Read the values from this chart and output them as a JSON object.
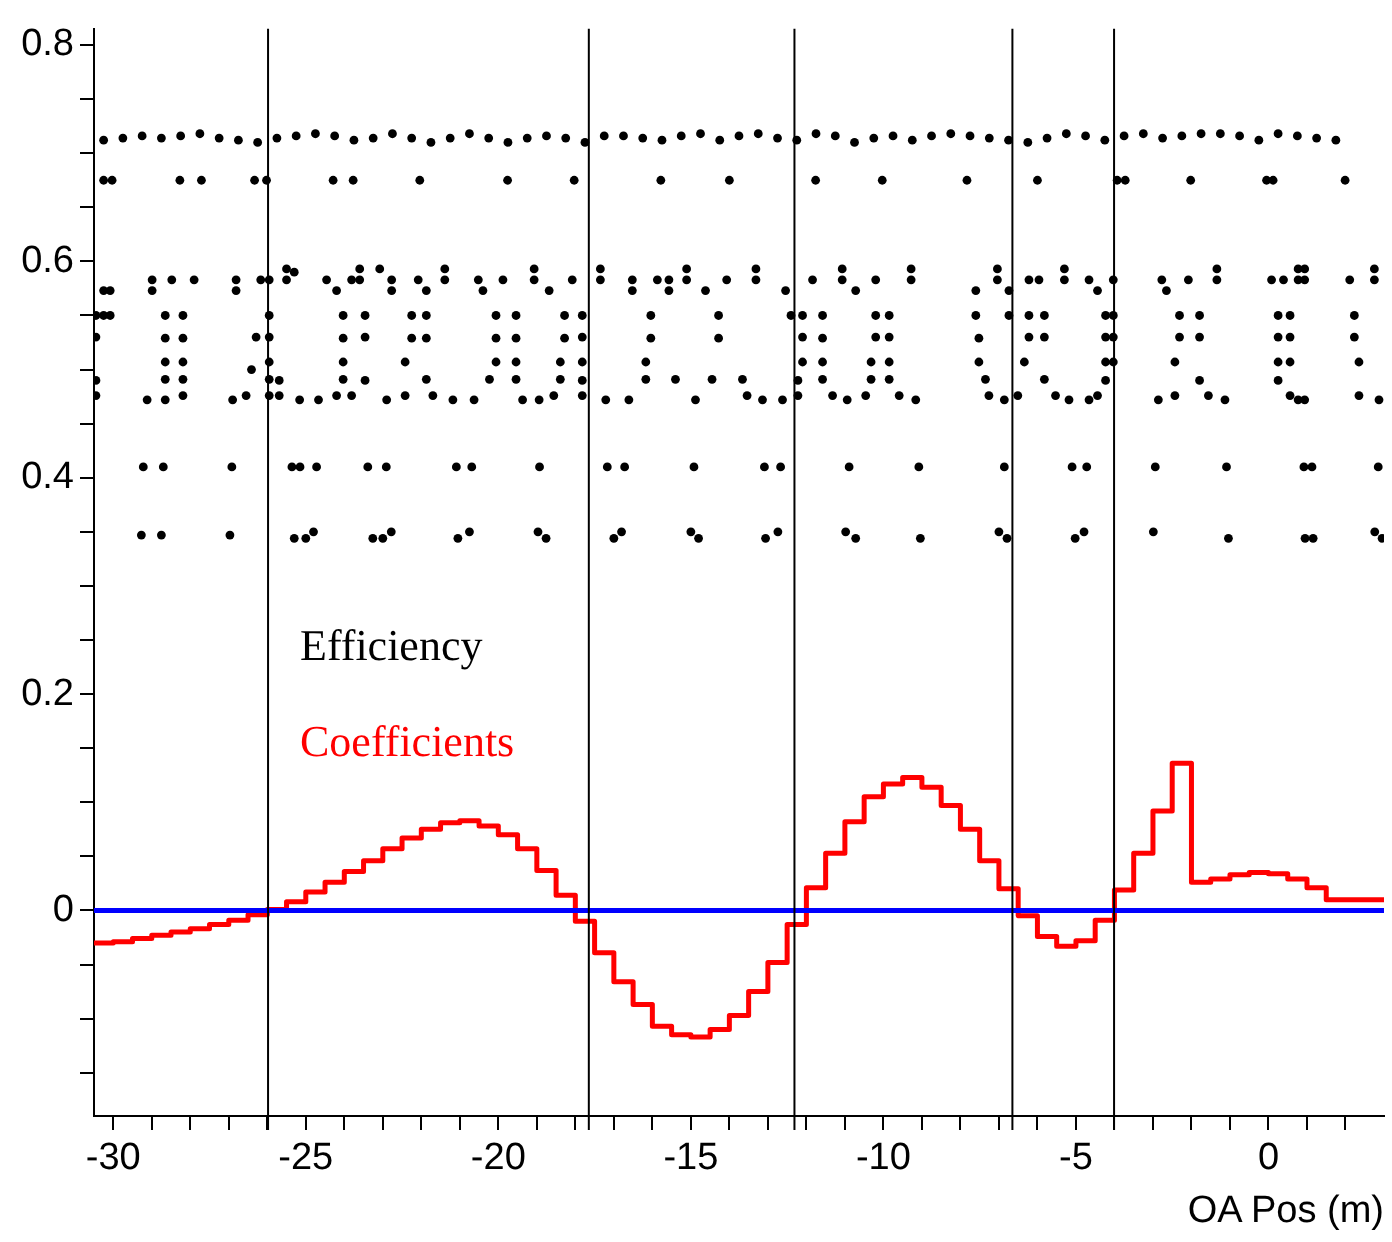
{
  "chart_data": {
    "type": "scatter",
    "xlabel": "OA Pos (m)",
    "xlim": [
      -30.5,
      3
    ],
    "ylim": [
      -0.19,
      0.815
    ],
    "xticks": [
      {
        "value": -30,
        "label": "-30"
      },
      {
        "value": -29,
        "label": null
      },
      {
        "value": -28,
        "label": null
      },
      {
        "value": -27,
        "label": null
      },
      {
        "value": -26,
        "label": null
      },
      {
        "value": -25,
        "label": "-25"
      },
      {
        "value": -24,
        "label": null
      },
      {
        "value": -23,
        "label": null
      },
      {
        "value": -22,
        "label": null
      },
      {
        "value": -21,
        "label": null
      },
      {
        "value": -20,
        "label": "-20"
      },
      {
        "value": -19,
        "label": null
      },
      {
        "value": -18,
        "label": null
      },
      {
        "value": -17,
        "label": null
      },
      {
        "value": -16,
        "label": null
      },
      {
        "value": -15,
        "label": "-15"
      },
      {
        "value": -14,
        "label": null
      },
      {
        "value": -13,
        "label": null
      },
      {
        "value": -12,
        "label": null
      },
      {
        "value": -11,
        "label": null
      },
      {
        "value": -10,
        "label": "-10"
      },
      {
        "value": -9,
        "label": null
      },
      {
        "value": -8,
        "label": null
      },
      {
        "value": -7,
        "label": null
      },
      {
        "value": -6,
        "label": null
      },
      {
        "value": -5,
        "label": "-5"
      },
      {
        "value": -4,
        "label": null
      },
      {
        "value": -3,
        "label": null
      },
      {
        "value": -2,
        "label": null
      },
      {
        "value": -1,
        "label": null
      },
      0,
      {
        "value": 1,
        "label": null
      },
      {
        "value": 2,
        "label": null
      }
    ],
    "yticks": [
      {
        "value": -0.15,
        "label": null
      },
      {
        "value": -0.1,
        "label": null
      },
      {
        "value": -0.05,
        "label": null
      },
      0,
      {
        "value": 0.05,
        "label": null
      },
      {
        "value": 0.1,
        "label": null
      },
      {
        "value": 0.15,
        "label": null
      },
      0.2,
      {
        "value": 0.25,
        "label": null
      },
      {
        "value": 0.3,
        "label": null
      },
      {
        "value": 0.35,
        "label": null
      },
      0.4,
      {
        "value": 0.45,
        "label": null
      },
      {
        "value": 0.5,
        "label": null
      },
      {
        "value": 0.55,
        "label": null
      },
      0.6,
      {
        "value": 0.65,
        "label": null
      },
      {
        "value": 0.7,
        "label": null
      },
      {
        "value": 0.75,
        "label": null
      },
      0.8
    ],
    "marker": "circle",
    "legend": "left",
    "ref_lines": [
      {
        "axis": "y",
        "value": 0,
        "color": "#0000ff"
      },
      {
        "axis": "x",
        "value": -25.98,
        "color": "#000000"
      },
      {
        "axis": "x",
        "value": -17.65,
        "color": "#000000"
      },
      {
        "axis": "x",
        "value": -12.31,
        "color": "#000000"
      },
      {
        "axis": "x",
        "value": -6.65,
        "color": "#000000"
      },
      {
        "axis": "x",
        "value": -4.01,
        "color": "#000000"
      }
    ],
    "series": [
      {
        "name": "Efficiency",
        "type": "scatter",
        "color": "#000000",
        "x": [
          -30.25,
          -29.75,
          -29.25,
          -28.75,
          -28.25,
          -27.75,
          -27.25,
          -26.75,
          -26.25,
          -25.75,
          -25.25,
          -24.75,
          -24.25,
          -23.75,
          -23.25,
          -22.75,
          -22.25,
          -21.75,
          -21.25,
          -20.75,
          -20.25,
          -19.75,
          -19.25,
          -18.75,
          -18.25,
          -17.75,
          -17.25,
          -16.75,
          -16.25,
          -15.75,
          -15.25,
          -14.75,
          -14.25,
          -13.75,
          -13.25,
          -12.75,
          -12.25,
          -11.75,
          -11.25,
          -10.75,
          -10.25,
          -9.75,
          -9.25,
          -8.75,
          -8.25,
          -7.75,
          -7.25,
          -6.75,
          -6.25,
          -5.75,
          -5.25,
          -4.75,
          -4.25,
          -3.75,
          -3.25,
          -2.75,
          -2.25,
          -1.75,
          -1.25,
          -0.75,
          -0.25,
          0.25,
          0.75,
          1.25,
          1.75,
          -30.25,
          -30.03,
          -28.27,
          -27.71,
          -26.33,
          -26.02,
          -24.29,
          -23.77,
          -22.04,
          -19.76,
          -18.03,
          -15.78,
          -14.0,
          -11.76,
          -10.03,
          -7.83,
          -6.0,
          -3.93,
          -3.72,
          -2.02,
          -0.05,
          0.12,
          1.99,
          -29.22,
          -28.7,
          -26.92,
          -25.36,
          -25.15,
          -24.72,
          -23.39,
          -22.91,
          -21.09,
          -20.69,
          -18.93,
          -17.17,
          -16.72,
          -14.92,
          -13.09,
          -12.67,
          -10.89,
          -9.08,
          -6.86,
          -5.1,
          -4.72,
          -2.94,
          -1.09,
          0.92,
          1.13,
          2.85,
          -29.27,
          -28.75,
          -26.97,
          -25.3,
          -25.0,
          -24.8,
          -23.26,
          -23.0,
          -22.78,
          -21.05,
          -20.75,
          -18.97,
          -18.76,
          -17.0,
          -16.8,
          -15.0,
          -14.8,
          -13.06,
          -12.74,
          -10.98,
          -10.72,
          -9.04,
          -7.0,
          -6.79,
          -5.02,
          -4.79,
          -2.99,
          -1.04,
          0.95,
          1.16,
          2.76,
          2.95,
          -30.45,
          -30.45,
          -30.45,
          -30.45,
          -30.25,
          -30.25,
          -30.08,
          -30.08,
          -29.12,
          -28.99,
          -28.99,
          -28.65,
          -28.65,
          -28.65,
          -28.65,
          -28.65,
          -28.48,
          -28.19,
          -28.19,
          -28.19,
          -28.19,
          -28.19,
          -27.9,
          -26.9,
          -26.81,
          -26.81,
          -26.55,
          -26.41,
          -26.29,
          -26.17,
          -25.95,
          -25.95,
          -25.95,
          -25.95,
          -25.95,
          -25.95,
          -25.69,
          -25.69,
          -25.5,
          -25.5,
          -25.3,
          -25.16,
          -24.67,
          -24.46,
          -24.2,
          -24.2,
          -24.03,
          -24.03,
          -24.03,
          -24.03,
          -23.81,
          -23.81,
          -23.6,
          -23.6,
          -23.46,
          -23.46,
          -23.46,
          -23.08,
          -22.9,
          -22.77,
          -22.77,
          -22.42,
          -22.42,
          -22.25,
          -22.25,
          -22.08,
          -21.87,
          -21.87,
          -21.87,
          -21.87,
          -21.7,
          -21.39,
          -21.39,
          -21.18,
          -20.63,
          -20.52,
          -20.4,
          -20.23,
          -20.06,
          -20.06,
          -20.06,
          -19.88,
          -19.54,
          -19.54,
          -19.54,
          -19.54,
          -19.37,
          -19.07,
          -19.07,
          -18.94,
          -18.68,
          -18.56,
          -18.39,
          -18.39,
          -18.28,
          -18.28,
          -18.08,
          -17.82,
          -17.82,
          -17.82,
          -17.82,
          -17.82,
          -17.35,
          -17.35,
          -17.21,
          -16.61,
          -16.52,
          -16.52,
          -16.17,
          -16.17,
          -16.04,
          -16.04,
          -15.87,
          -15.57,
          -15.57,
          -15.4,
          -15.11,
          -15.11,
          -14.88,
          -14.62,
          -14.45,
          -14.28,
          -14.28,
          -14.07,
          -13.66,
          -13.54,
          -13.31,
          -13.31,
          -13.14,
          -12.62,
          -12.54,
          -12.4,
          -12.22,
          -12.22,
          -12.1,
          -12.1,
          -12.1,
          -11.84,
          -11.58,
          -11.58,
          -11.58,
          -11.58,
          -11.32,
          -11.07,
          -11.07,
          -10.94,
          -10.72,
          -10.46,
          -10.32,
          -10.32,
          -10.2,
          -10.2,
          -10.2,
          -9.85,
          -9.85,
          -9.85,
          -9.85,
          -9.59,
          -9.28,
          -9.28,
          -9.16,
          -7.6,
          -7.6,
          -7.52,
          -7.52,
          -7.35,
          -7.26,
          -7.04,
          -7.04,
          -6.86,
          -6.74,
          -6.74,
          -6.51,
          -6.34,
          -6.22,
          -6.22,
          -6.22,
          -5.96,
          -5.82,
          -5.82,
          -5.82,
          -5.53,
          -5.3,
          -5.3,
          -5.18,
          -4.66,
          -4.66,
          -4.44,
          -4.44,
          -4.23,
          -4.23,
          -4.23,
          -4.23,
          -4.03,
          -4.03,
          -4.03,
          -4.03,
          -2.86,
          -2.77,
          -2.65,
          -2.43,
          -2.43,
          -2.31,
          -2.31,
          -2.08,
          -1.79,
          -1.79,
          -1.79,
          -1.56,
          -1.34,
          -1.34,
          -1.13,
          0.08,
          0.25,
          0.25,
          0.25,
          0.25,
          0.39,
          0.56,
          0.56,
          0.56,
          0.56,
          0.77,
          0.77,
          0.77,
          0.94,
          0.94,
          0.94,
          2.11,
          2.23,
          2.23,
          2.35,
          2.35,
          2.75,
          2.75,
          2.87
        ],
        "values": [
          0.712,
          0.714,
          0.716,
          0.714,
          0.716,
          0.718,
          0.714,
          0.712,
          0.71,
          0.714,
          0.716,
          0.718,
          0.716,
          0.712,
          0.714,
          0.718,
          0.714,
          0.71,
          0.714,
          0.718,
          0.714,
          0.71,
          0.714,
          0.716,
          0.714,
          0.71,
          0.716,
          0.716,
          0.714,
          0.712,
          0.716,
          0.718,
          0.712,
          0.716,
          0.718,
          0.714,
          0.712,
          0.718,
          0.716,
          0.71,
          0.714,
          0.716,
          0.712,
          0.716,
          0.718,
          0.716,
          0.714,
          0.712,
          0.71,
          0.714,
          0.718,
          0.716,
          0.712,
          0.716,
          0.718,
          0.714,
          0.716,
          0.718,
          0.718,
          0.716,
          0.712,
          0.718,
          0.716,
          0.714,
          0.712,
          0.675,
          0.675,
          0.675,
          0.675,
          0.675,
          0.675,
          0.675,
          0.675,
          0.675,
          0.675,
          0.675,
          0.675,
          0.675,
          0.675,
          0.675,
          0.675,
          0.675,
          0.675,
          0.675,
          0.675,
          0.675,
          0.675,
          0.675,
          0.41,
          0.41,
          0.41,
          0.41,
          0.41,
          0.41,
          0.41,
          0.41,
          0.41,
          0.41,
          0.41,
          0.41,
          0.41,
          0.41,
          0.41,
          0.41,
          0.41,
          0.41,
          0.41,
          0.41,
          0.41,
          0.41,
          0.41,
          0.41,
          0.41,
          0.41,
          0.347,
          0.347,
          0.347,
          0.344,
          0.344,
          0.35,
          0.344,
          0.344,
          0.35,
          0.344,
          0.35,
          0.35,
          0.344,
          0.344,
          0.35,
          0.35,
          0.344,
          0.344,
          0.35,
          0.35,
          0.344,
          0.344,
          0.35,
          0.344,
          0.344,
          0.35,
          0.35,
          0.344,
          0.344,
          0.344,
          0.35,
          0.344,
          0.55,
          0.53,
          0.49,
          0.476,
          0.573,
          0.55,
          0.573,
          0.55,
          0.472,
          0.583,
          0.573,
          0.55,
          0.529,
          0.507,
          0.491,
          0.472,
          0.583,
          0.55,
          0.529,
          0.507,
          0.491,
          0.476,
          0.583,
          0.472,
          0.583,
          0.573,
          0.476,
          0.5,
          0.53,
          0.583,
          0.583,
          0.55,
          0.53,
          0.507,
          0.491,
          0.476,
          0.49,
          0.476,
          0.593,
          0.583,
          0.59,
          0.472,
          0.472,
          0.583,
          0.573,
          0.476,
          0.55,
          0.529,
          0.507,
          0.491,
          0.583,
          0.476,
          0.593,
          0.583,
          0.55,
          0.53,
          0.49,
          0.593,
          0.472,
          0.583,
          0.573,
          0.507,
          0.476,
          0.55,
          0.529,
          0.583,
          0.573,
          0.55,
          0.529,
          0.491,
          0.476,
          0.593,
          0.583,
          0.472,
          0.472,
          0.583,
          0.573,
          0.491,
          0.55,
          0.529,
          0.507,
          0.583,
          0.55,
          0.529,
          0.507,
          0.491,
          0.472,
          0.593,
          0.583,
          0.472,
          0.573,
          0.476,
          0.507,
          0.491,
          0.55,
          0.529,
          0.583,
          0.55,
          0.53,
          0.507,
          0.49,
          0.476,
          0.593,
          0.583,
          0.472,
          0.472,
          0.583,
          0.573,
          0.507,
          0.491,
          0.55,
          0.529,
          0.583,
          0.583,
          0.573,
          0.491,
          0.593,
          0.583,
          0.472,
          0.573,
          0.491,
          0.55,
          0.529,
          0.583,
          0.491,
          0.476,
          0.593,
          0.583,
          0.472,
          0.472,
          0.573,
          0.55,
          0.49,
          0.476,
          0.55,
          0.53,
          0.507,
          0.583,
          0.55,
          0.529,
          0.507,
          0.491,
          0.476,
          0.593,
          0.583,
          0.472,
          0.573,
          0.476,
          0.507,
          0.491,
          0.583,
          0.55,
          0.53,
          0.55,
          0.53,
          0.507,
          0.491,
          0.476,
          0.593,
          0.583,
          0.472,
          0.55,
          0.573,
          0.529,
          0.507,
          0.491,
          0.476,
          0.593,
          0.583,
          0.472,
          0.55,
          0.573,
          0.476,
          0.507,
          0.583,
          0.55,
          0.53,
          0.583,
          0.55,
          0.53,
          0.491,
          0.476,
          0.593,
          0.583,
          0.472,
          0.583,
          0.472,
          0.573,
          0.476,
          0.55,
          0.53,
          0.507,
          0.49,
          0.583,
          0.55,
          0.53,
          0.507,
          0.472,
          0.583,
          0.573,
          0.507,
          0.476,
          0.55,
          0.53,
          0.583,
          0.55,
          0.53,
          0.49,
          0.476,
          0.593,
          0.583,
          0.472,
          0.583,
          0.55,
          0.53,
          0.507,
          0.49,
          0.583,
          0.55,
          0.53,
          0.507,
          0.476,
          0.593,
          0.583,
          0.472,
          0.593,
          0.583,
          0.472,
          0.583,
          0.55,
          0.53,
          0.507,
          0.476,
          0.593,
          0.583,
          0.472
        ]
      },
      {
        "name": "Coefficients",
        "type": "histogram",
        "color": "#ff0000",
        "bins": [
          -30.5,
          -30,
          -29.5,
          -29,
          -28.5,
          -28,
          -27.5,
          -27,
          -26.5,
          -26,
          -25.5,
          -25,
          -24.5,
          -24,
          -23.5,
          -23,
          -22.5,
          -22,
          -21.5,
          -21,
          -20.5,
          -20,
          -19.5,
          -19,
          -18.5,
          -18,
          -17.5,
          -17,
          -16.5,
          -16,
          -15.5,
          -15,
          -14.5,
          -14,
          -13.5,
          -13,
          -12.5,
          -12,
          -11.5,
          -11,
          -10.5,
          -10,
          -9.5,
          -9,
          -8.5,
          -8,
          -7.5,
          -7,
          -6.5,
          -6,
          -5.5,
          -5,
          -4.5,
          -4,
          -3.5,
          -3,
          -2.5,
          -2,
          -1.5,
          -1,
          -0.5,
          0,
          0.5,
          1,
          1.5,
          2,
          2.5,
          3
        ],
        "values": [
          -0.03,
          -0.029,
          -0.026,
          -0.023,
          -0.02,
          -0.017,
          -0.013,
          -0.009,
          -0.004,
          0.001,
          0.008,
          0.017,
          0.026,
          0.036,
          0.046,
          0.057,
          0.067,
          0.075,
          0.081,
          0.083,
          0.078,
          0.07,
          0.057,
          0.037,
          0.014,
          -0.01,
          -0.039,
          -0.066,
          -0.087,
          -0.107,
          -0.115,
          -0.117,
          -0.11,
          -0.097,
          -0.075,
          -0.048,
          -0.013,
          0.021,
          0.053,
          0.082,
          0.105,
          0.117,
          0.123,
          0.114,
          0.097,
          0.075,
          0.046,
          0.02,
          -0.005,
          -0.024,
          -0.033,
          -0.028,
          -0.009,
          0.019,
          0.053,
          0.092,
          0.136,
          0.026,
          0.029,
          0.033,
          0.035,
          0.034,
          0.029,
          0.021,
          0.01,
          0.01,
          0.01
        ]
      }
    ]
  }
}
